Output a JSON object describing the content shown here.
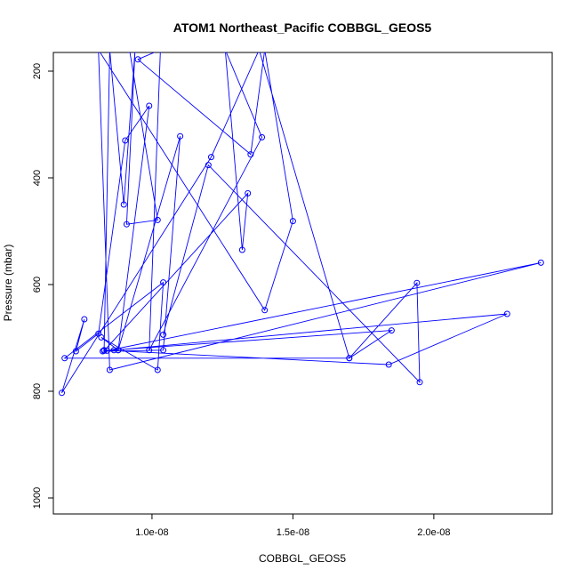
{
  "chart_data": {
    "type": "line",
    "title": "ATOM1 Northeast_Pacific COBBGL_GEOS5",
    "xlabel": "COBBGL_GEOS5",
    "ylabel": "Pressure (mbar)",
    "xlim": [
      6.5e-09,
      2.42e-08
    ],
    "ylim": [
      1030,
      165
    ],
    "y_reversed": true,
    "x_ticks": [
      1e-08,
      1.5e-08,
      2e-08
    ],
    "x_tick_labels": [
      "1.0e-08",
      "1.5e-08",
      "2.0e-08"
    ],
    "y_ticks": [
      200,
      400,
      600,
      800,
      1000
    ],
    "y_tick_labels": [
      "200",
      "400",
      "600",
      "800",
      "1000"
    ],
    "grid": false,
    "legend": "none",
    "colors": {
      "series": "#0000ff",
      "axis": "#000000"
    },
    "series": [
      {
        "marker": "open-circle",
        "x": [
          1.04e-08,
          1.2e-08,
          1.95e-08,
          1.94e-08,
          1.7e-08,
          1.38e-08,
          1.21e-08,
          6.8e-09,
          7.6e-09,
          7.3e-09,
          8.1e-09,
          9.05e-09,
          9.9e-09,
          8.8e-09,
          8.25e-09,
          1.04e-08,
          1.1e-08,
          8.8e-09,
          8.2e-09,
          1.02e-08,
          1.04e-08,
          6.9e-09,
          1.7e-08,
          1.85e-08,
          8.3e-09,
          1.34e-08,
          1.32e-08,
          1.26e-08,
          1.39e-08,
          9.9e-09,
          1.03e-08,
          9.5e-09,
          1.35e-08,
          1.4e-08,
          1.5e-08,
          1.4e-08,
          8.1e-09,
          8.5e-09,
          2.38e-08,
          8.4e-09,
          8.65e-09,
          2.26e-08,
          1.84e-08,
          8.3e-09,
          8.5e-09,
          8.5e-09,
          9e-09,
          9.4e-09,
          9.1e-09,
          1.02e-08,
          9.2e-09
        ],
        "y": [
          694,
          376,
          783,
          597,
          738,
          160,
          361,
          803,
          665,
          725,
          692,
          330,
          265,
          723,
          725,
          723,
          322,
          723,
          699,
          760,
          596,
          738,
          738,
          686,
          724,
          429,
          535,
          160,
          324,
          723,
          160,
          178,
          356,
          160,
          481,
          648,
          160,
          760,
          559,
          724,
          723,
          655,
          750,
          723,
          160,
          160,
          450,
          160,
          487,
          479,
          160
        ]
      }
    ]
  }
}
